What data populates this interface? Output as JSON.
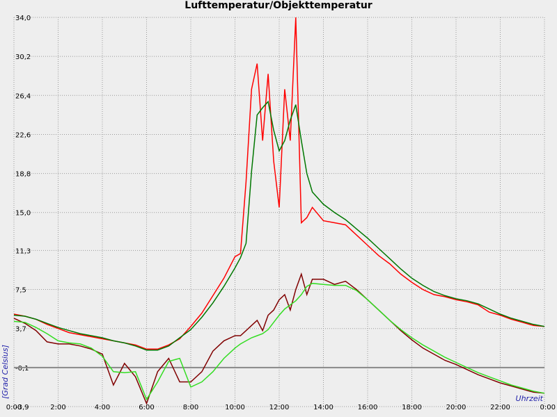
{
  "chart_data": {
    "type": "line",
    "title": "Lufttemperatur/Objekttemperatur",
    "y_label": "[Grad Celsius]",
    "x_label": "Uhrzeit",
    "x": [
      0,
      0.5,
      1,
      1.5,
      2,
      2.5,
      3,
      3.5,
      4,
      4.5,
      5,
      5.5,
      6,
      6.5,
      7,
      7.5,
      8,
      8.5,
      9,
      9.5,
      10,
      10.25,
      10.5,
      10.75,
      11,
      11.25,
      11.5,
      11.75,
      12,
      12.25,
      12.5,
      12.75,
      13,
      13.25,
      13.5,
      14,
      14.5,
      15,
      15.5,
      16,
      16.5,
      17,
      17.5,
      18,
      18.5,
      19,
      19.5,
      20,
      20.5,
      21,
      21.5,
      22,
      22.5,
      23,
      23.5,
      24
    ],
    "series": [
      {
        "color": "#ff0000",
        "values": [
          5.1,
          4.9,
          4.6,
          4.1,
          3.7,
          3.3,
          3.1,
          2.9,
          2.7,
          2.5,
          2.3,
          2.1,
          1.7,
          1.7,
          2.1,
          2.7,
          3.9,
          5.2,
          6.9,
          8.6,
          10.7,
          11.0,
          18.0,
          27.0,
          29.5,
          22.0,
          28.5,
          20.0,
          15.5,
          27.0,
          22.0,
          34.0,
          14.0,
          14.5,
          15.5,
          14.2,
          14.0,
          13.8,
          12.8,
          11.8,
          10.8,
          10.0,
          9.0,
          8.2,
          7.5,
          7.0,
          6.8,
          6.5,
          6.3,
          6.0,
          5.3,
          5.0,
          4.6,
          4.3,
          4.0,
          3.9
        ]
      },
      {
        "color": "#007700",
        "values": [
          5.0,
          4.9,
          4.6,
          4.2,
          3.8,
          3.5,
          3.2,
          3.0,
          2.8,
          2.5,
          2.3,
          2.0,
          1.6,
          1.6,
          2.0,
          2.8,
          3.6,
          4.8,
          6.2,
          7.8,
          9.6,
          10.6,
          12.0,
          19.0,
          24.5,
          25.2,
          25.8,
          23.0,
          21.0,
          22.0,
          24.0,
          25.5,
          22.0,
          18.8,
          17.0,
          15.8,
          15.0,
          14.3,
          13.4,
          12.5,
          11.5,
          10.5,
          9.5,
          8.6,
          7.9,
          7.3,
          6.9,
          6.6,
          6.4,
          6.1,
          5.6,
          5.1,
          4.7,
          4.4,
          4.1,
          3.9
        ]
      },
      {
        "color": "#800000",
        "values": [
          4.7,
          4.2,
          3.5,
          2.4,
          2.2,
          2.2,
          2.0,
          1.7,
          1.2,
          -1.8,
          0.3,
          -1.0,
          -3.6,
          -0.5,
          0.8,
          -1.5,
          -1.5,
          -0.5,
          1.5,
          2.5,
          3.0,
          3.0,
          3.5,
          4.0,
          4.5,
          3.5,
          5.0,
          5.5,
          6.5,
          7.0,
          5.5,
          7.5,
          9.0,
          7.0,
          8.5,
          8.5,
          8.0,
          8.3,
          7.5,
          6.5,
          5.5,
          4.5,
          3.5,
          2.6,
          1.8,
          1.2,
          0.6,
          0.2,
          -0.3,
          -0.8,
          -1.2,
          -1.6,
          -1.9,
          -2.2,
          -2.5,
          -2.6
        ]
      },
      {
        "color": "#33dd22",
        "values": [
          4.4,
          4.3,
          3.8,
          3.2,
          2.5,
          2.3,
          2.2,
          1.8,
          1.0,
          -0.5,
          -0.6,
          -0.5,
          -3.2,
          -1.5,
          0.5,
          0.8,
          -2.0,
          -1.5,
          -0.5,
          0.8,
          1.8,
          2.2,
          2.5,
          2.8,
          3.0,
          3.2,
          3.6,
          4.3,
          5.0,
          5.6,
          6.0,
          6.4,
          7.0,
          7.8,
          8.1,
          8.0,
          7.9,
          7.9,
          7.4,
          6.5,
          5.5,
          4.5,
          3.6,
          2.8,
          2.1,
          1.5,
          0.9,
          0.4,
          -0.1,
          -0.6,
          -1.0,
          -1.4,
          -1.8,
          -2.1,
          -2.4,
          -2.6
        ]
      }
    ],
    "xlim": [
      0,
      24
    ],
    "xticks": [
      {
        "value": 0,
        "label": "0:00"
      },
      {
        "value": 2,
        "label": "2:00"
      },
      {
        "value": 4,
        "label": "4:00"
      },
      {
        "value": 6,
        "label": "6:00"
      },
      {
        "value": 8,
        "label": "8:00"
      },
      {
        "value": 10,
        "label": "10:00"
      },
      {
        "value": 12,
        "label": "12:00"
      },
      {
        "value": 14,
        "label": "14:00"
      },
      {
        "value": 16,
        "label": "16:00"
      },
      {
        "value": 18,
        "label": "18:00"
      },
      {
        "value": 20,
        "label": "20:00"
      },
      {
        "value": 22,
        "label": "22:00"
      },
      {
        "value": 24,
        "label": "0:00"
      }
    ],
    "ylim": [
      -3.9,
      34.0
    ],
    "yticks": [
      {
        "value": -3.9,
        "label": "-3,9"
      },
      {
        "value": -0.1,
        "label": "-0,1"
      },
      {
        "value": 3.7,
        "label": "3,7"
      },
      {
        "value": 7.5,
        "label": "7,5"
      },
      {
        "value": 11.3,
        "label": "11,3"
      },
      {
        "value": 15.0,
        "label": "15,0"
      },
      {
        "value": 18.8,
        "label": "18,8"
      },
      {
        "value": 22.6,
        "label": "22,6"
      },
      {
        "value": 26.4,
        "label": "26,4"
      },
      {
        "value": 30.2,
        "label": "30,2"
      },
      {
        "value": 34.0,
        "label": "34,0"
      }
    ],
    "hline": -0.1,
    "grid": true
  }
}
